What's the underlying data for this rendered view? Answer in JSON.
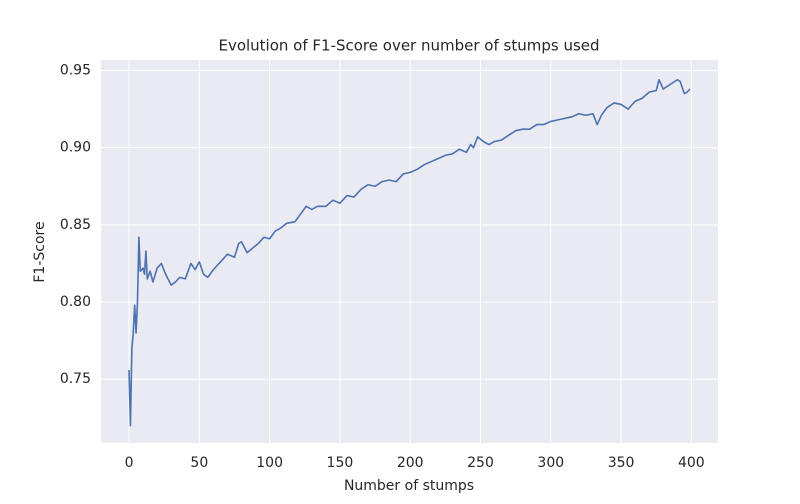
{
  "chart_data": {
    "type": "line",
    "title": "Evolution of F1-Score over number of stumps used",
    "xlabel": "Number of stumps",
    "ylabel": "F1-Score",
    "x": [
      0,
      1,
      2,
      3,
      4,
      5,
      6,
      7,
      8,
      10,
      11,
      12,
      13,
      15,
      17,
      20,
      23,
      26,
      30,
      33,
      36,
      40,
      44,
      47,
      50,
      53,
      56,
      60,
      65,
      70,
      75,
      78,
      80,
      84,
      88,
      92,
      96,
      100,
      104,
      108,
      112,
      118,
      122,
      126,
      130,
      134,
      140,
      145,
      150,
      155,
      160,
      165,
      170,
      175,
      180,
      185,
      190,
      195,
      200,
      205,
      210,
      215,
      220,
      225,
      230,
      235,
      240,
      243,
      245,
      248,
      252,
      256,
      260,
      265,
      270,
      275,
      280,
      285,
      290,
      295,
      300,
      305,
      310,
      315,
      320,
      325,
      330,
      333,
      336,
      340,
      345,
      350,
      355,
      360,
      365,
      370,
      375,
      377,
      380,
      385,
      390,
      392,
      395,
      397,
      399
    ],
    "series": [
      {
        "name": "F1-Score",
        "color": "#4c72b0",
        "values": [
          0.756,
          0.72,
          0.77,
          0.78,
          0.798,
          0.78,
          0.8,
          0.842,
          0.82,
          0.822,
          0.818,
          0.833,
          0.815,
          0.82,
          0.813,
          0.822,
          0.825,
          0.818,
          0.811,
          0.813,
          0.816,
          0.815,
          0.825,
          0.821,
          0.826,
          0.818,
          0.816,
          0.821,
          0.826,
          0.831,
          0.829,
          0.838,
          0.839,
          0.832,
          0.835,
          0.838,
          0.842,
          0.841,
          0.846,
          0.848,
          0.851,
          0.852,
          0.857,
          0.862,
          0.86,
          0.862,
          0.862,
          0.866,
          0.864,
          0.869,
          0.868,
          0.873,
          0.876,
          0.875,
          0.878,
          0.879,
          0.878,
          0.883,
          0.884,
          0.886,
          0.889,
          0.891,
          0.893,
          0.895,
          0.896,
          0.899,
          0.897,
          0.902,
          0.9,
          0.907,
          0.904,
          0.902,
          0.904,
          0.905,
          0.908,
          0.911,
          0.912,
          0.912,
          0.915,
          0.915,
          0.917,
          0.918,
          0.919,
          0.92,
          0.922,
          0.921,
          0.922,
          0.915,
          0.921,
          0.926,
          0.929,
          0.928,
          0.925,
          0.93,
          0.932,
          0.936,
          0.937,
          0.944,
          0.938,
          0.941,
          0.944,
          0.943,
          0.935,
          0.936,
          0.938
        ]
      }
    ],
    "xlim": [
      -19.95,
      418.95
    ],
    "ylim": [
      0.7087,
      0.9568
    ],
    "xticks": [
      0,
      50,
      100,
      150,
      200,
      250,
      300,
      350,
      400
    ],
    "yticks": [
      0.75,
      {
        "value": 0.8,
        "label": "0.80"
      },
      0.85,
      {
        "value": 0.9,
        "label": "0.90"
      },
      0.95
    ],
    "grid": true
  }
}
